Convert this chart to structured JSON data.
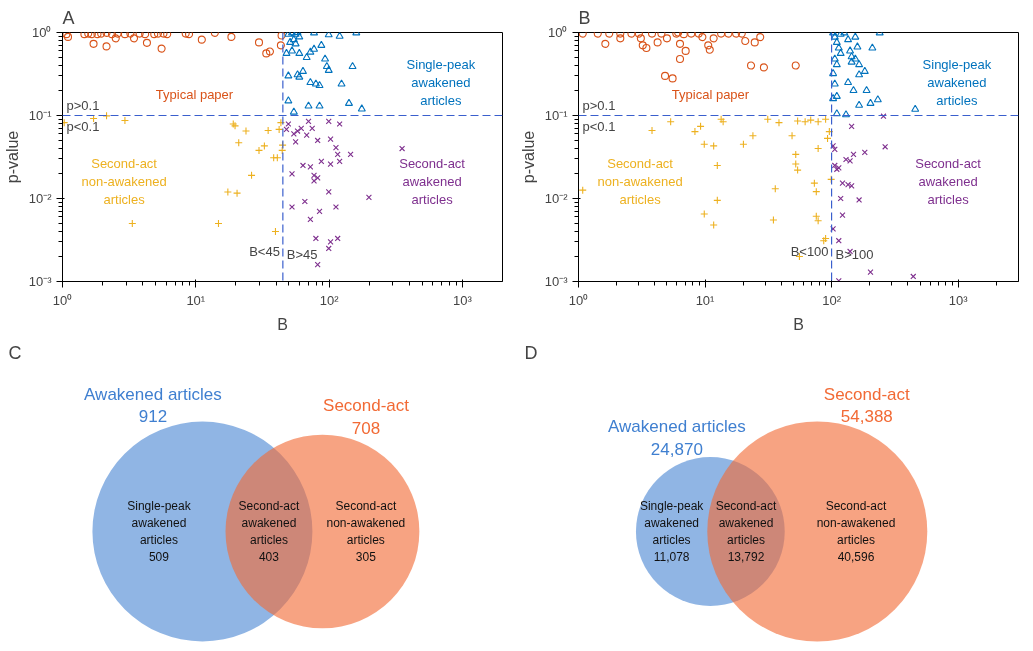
{
  "chart_data": [
    {
      "type": "scatter",
      "title": "A",
      "xlabel": "B",
      "ylabel": "p-value",
      "log": "xy",
      "xlim": [
        1,
        2000
      ],
      "ylim": [
        0.001,
        1
      ],
      "grid": false,
      "legend": "bottom left",
      "xticks": [
        {
          "value": 1,
          "label": "10⁰"
        },
        {
          "value": 10,
          "label": "10¹"
        },
        {
          "value": 100,
          "label": "10²"
        },
        {
          "value": 1000,
          "label": "10³"
        }
      ],
      "yticks": [
        {
          "value": 0.001,
          "label": "10⁻³"
        },
        {
          "value": 0.01,
          "label": "10⁻²"
        },
        {
          "value": 0.1,
          "label": "10⁻¹"
        },
        {
          "value": 1,
          "label": "10⁰"
        }
      ],
      "ref_lines": [
        {
          "axis": "y",
          "value": 0.1,
          "label": "p<0.1",
          "color": "#3a5fcd",
          "line_style": "dashed"
        },
        {
          "axis": "x",
          "value": 45,
          "label": "B<45",
          "color": "#3a5fcd",
          "line_style": "dashed"
        }
      ],
      "annotations": [
        {
          "text": "p>0.1",
          "x": 1,
          "y": 0.1
        },
        {
          "text": "B>45",
          "x": 45,
          "y": 0.0016
        }
      ],
      "series": [
        {
          "name": "Typical paper",
          "color": "#d95319",
          "marker": "circle",
          "x": [
            1.07,
            1.1,
            1.46,
            1.56,
            1.66,
            1.71,
            1.83,
            1.95,
            2.14,
            2.14,
            2.35,
            2.51,
            2.59,
            2.94,
            3.23,
            3.44,
            3.79,
            4.17,
            4.3,
            4.88,
            5.2,
            5.54,
            5.72,
            6.1,
            8.4,
            8.9,
            11.1,
            13.9,
            18.5,
            29.8,
            33.8,
            36,
            43.5,
            44
          ],
          "values": [
            0.955,
            0.885,
            0.955,
            0.97,
            0.955,
            0.73,
            0.955,
            0.97,
            0.99,
            0.68,
            0.955,
            0.85,
            0.97,
            0.955,
            0.97,
            0.85,
            0.97,
            0.955,
            0.75,
            0.955,
            0.97,
            0.64,
            0.97,
            0.955,
            0.97,
            0.955,
            0.82,
            0.99,
            0.885,
            0.76,
            0.56,
            0.59,
            0.7,
            0.92
          ]
        },
        {
          "name": "Single-peak awakened articles",
          "color": "#0072bd",
          "marker": "triangle",
          "x": [
            49.5,
            52.7,
            56.1,
            58,
            59.8,
            54.4,
            51,
            56.1,
            77.1,
            99.4,
            120,
            160,
            52.7,
            59.8,
            72.4,
            77.1,
            87.5,
            47.9,
            67.9,
            93.3,
            96.2,
            99.4,
            150,
            49.5,
            58,
            59.8,
            63.7,
            72.4,
            79.6,
            84.8,
            124,
            49.5,
            70.1,
            84.8,
            141,
            176,
            54.4
          ],
          "values": [
            0.955,
            0.99,
            0.955,
            1.0,
            0.885,
            0.82,
            0.76,
            0.73,
            0.99,
            0.94,
            0.9,
            0.99,
            0.6,
            0.56,
            0.58,
            0.63,
            0.7,
            0.56,
            0.5,
            0.48,
            0.39,
            0.35,
            0.39,
            0.3,
            0.31,
            0.29,
            0.34,
            0.25,
            0.24,
            0.23,
            0.24,
            0.15,
            0.13,
            0.13,
            0.14,
            0.12,
            0.11
          ]
        },
        {
          "name": "Second-act non-awakened articles",
          "color": "#edb120",
          "marker": "cross",
          "x": [
            1.03,
            1.71,
            2.14,
            2.94,
            19.1,
            19.7,
            23.8,
            34.9,
            42.2,
            43.5,
            21,
            32.7,
            29.8,
            44.8,
            44.5,
            38.4,
            40.9,
            26.2,
            17.4,
            20.4,
            3.34,
            14.8,
            39.6
          ],
          "values": [
            0.082,
            0.092,
            0.099,
            0.087,
            0.079,
            0.075,
            0.065,
            0.066,
            0.068,
            0.082,
            0.047,
            0.043,
            0.038,
            0.044,
            0.038,
            0.031,
            0.031,
            0.019,
            0.012,
            0.0116,
            0.005,
            0.005,
            0.004
          ]
        },
        {
          "name": "Second-act awakened articles",
          "color": "#7e2f8e",
          "marker": "x",
          "x": [
            47.9,
            49.5,
            54.4,
            58,
            61.8,
            67.9,
            70.1,
            74.7,
            82.1,
            99.4,
            102.6,
            120,
            112.6,
            116,
            120,
            145,
            56.1,
            63.7,
            72.4,
            87.5,
            102.6,
            353,
            52.7,
            77.1,
            82.1,
            77.1,
            99.4,
            65.8,
            199,
            52.7,
            112.6,
            84.8,
            72.4,
            79.6,
            102.6,
            116,
            99.4,
            82.1
          ],
          "values": [
            0.068,
            0.079,
            0.06,
            0.065,
            0.07,
            0.058,
            0.085,
            0.07,
            0.05,
            0.085,
            0.052,
            0.079,
            0.041,
            0.034,
            0.028,
            0.034,
            0.048,
            0.025,
            0.024,
            0.028,
            0.026,
            0.04,
            0.0198,
            0.019,
            0.0177,
            0.0163,
            0.012,
            0.0092,
            0.0103,
            0.0079,
            0.0079,
            0.007,
            0.0056,
            0.0033,
            0.003,
            0.0033,
            0.0025,
            0.0016
          ]
        }
      ]
    },
    {
      "type": "scatter",
      "title": "B",
      "xlabel": "B",
      "ylabel": "p-value",
      "log": "xy",
      "xlim": [
        1,
        3000
      ],
      "ylim": [
        0.001,
        1
      ],
      "grid": false,
      "legend": "bottom left",
      "xticks": [
        {
          "value": 1,
          "label": "10⁰"
        },
        {
          "value": 10,
          "label": "10¹"
        },
        {
          "value": 100,
          "label": "10²"
        },
        {
          "value": 1000,
          "label": "10³"
        }
      ],
      "yticks": [
        {
          "value": 0.001,
          "label": "10⁻³"
        },
        {
          "value": 0.01,
          "label": "10⁻²"
        },
        {
          "value": 0.1,
          "label": "10⁻¹"
        },
        {
          "value": 1,
          "label": "10⁰"
        }
      ],
      "ref_lines": [
        {
          "axis": "y",
          "value": 0.1,
          "label": "p<0.1",
          "color": "#3a5fcd",
          "line_style": "dashed"
        },
        {
          "axis": "x",
          "value": 100,
          "label": "B<100",
          "color": "#3a5fcd",
          "line_style": "dashed"
        }
      ],
      "annotations": [
        {
          "text": "p>0.1",
          "x": 1,
          "y": 0.1
        },
        {
          "text": "B>100",
          "x": 100,
          "y": 0.0016
        }
      ],
      "series": [
        {
          "name": "Typical paper",
          "color": "#d95319",
          "marker": "circle",
          "x": [
            1.08,
            1.42,
            1.63,
            1.75,
            2.14,
            2.14,
            2.62,
            3.0,
            3.11,
            3.22,
            3.44,
            3.81,
            4.22,
            4.52,
            5.0,
            5.93,
            6.13,
            6.34,
            6.79,
            7.03,
            6.34,
            7.78,
            8.91,
            9.53,
            10.6,
            10.9,
            11.7,
            13.4,
            15.3,
            17.6,
            19.5,
            20.8,
            24.7,
            27.3,
            4.83,
            5.54,
            23.1,
            29.2,
            52.1
          ],
          "values": [
            0.97,
            0.97,
            0.73,
            0.97,
            0.97,
            0.85,
            0.97,
            0.97,
            0.85,
            0.7,
            0.65,
            0.97,
            0.76,
            0.97,
            0.85,
            0.97,
            1.0,
            0.73,
            0.955,
            0.6,
            0.48,
            0.97,
            0.97,
            0.88,
            0.7,
            0.62,
            0.85,
            0.97,
            0.97,
            0.97,
            0.97,
            0.79,
            0.76,
            0.88,
            0.3,
            0.28,
            0.4,
            0.38,
            0.4
          ]
        },
        {
          "name": "Single-peak awakened articles",
          "color": "#0072bd",
          "marker": "triangle",
          "x": [
            102.8,
            106,
            110,
            114,
            118,
            106,
            110,
            102.8,
            106,
            110,
            102.8,
            118,
            126,
            135,
            140,
            144,
            154,
            160,
            144,
            154,
            165,
            183,
            165,
            135,
            149,
            189,
            165,
            203,
            232,
            240,
            210,
            110,
            130,
            458
          ],
          "values": [
            0.99,
            0.88,
            0.76,
            0.65,
            0.56,
            0.48,
            0.41,
            0.32,
            0.24,
            0.17,
            0.16,
            0.955,
            0.99,
            0.82,
            0.6,
            0.51,
            0.88,
            0.67,
            0.44,
            0.48,
            0.41,
            0.34,
            0.31,
            0.25,
            0.2,
            0.2,
            0.133,
            0.14,
            0.155,
            0.99,
            0.65,
            0.105,
            0.102,
            0.119
          ]
        },
        {
          "name": "Second-act non-awakened articles",
          "color": "#edb120",
          "marker": "cross",
          "x": [
            1.08,
            3.81,
            5.35,
            8.32,
            9.22,
            9.86,
            11.7,
            12.5,
            12.5,
            9.86,
            11.7,
            13.4,
            13.9,
            20.1,
            23.9,
            31.3,
            38.4,
            35.9,
            34.7,
            48.7,
            52.1,
            52.1,
            53.9,
            53.9,
            61.8,
            68.4,
            78.3,
            89.7,
            78.3,
            92.9,
            96,
            73.1,
            75.7,
            75.7,
            78.3,
            99.3,
            89.7,
            86.7,
            55.7
          ],
          "values": [
            0.0126,
            0.066,
            0.084,
            0.064,
            0.074,
            0.045,
            0.043,
            0.025,
            0.0095,
            0.0065,
            0.0048,
            0.09,
            0.084,
            0.045,
            0.057,
            0.09,
            0.082,
            0.0131,
            0.0055,
            0.057,
            0.034,
            0.026,
            0.022,
            0.086,
            0.084,
            0.088,
            0.084,
            0.09,
            0.04,
            0.053,
            0.064,
            0.0153,
            0.0121,
            0.0061,
            0.0054,
            0.017,
            0.0033,
            0.0031,
            0.002
          ]
        },
        {
          "name": "Second-act awakened articles",
          "color": "#7e2f8e",
          "marker": "x",
          "x": [
            102.8,
            106,
            106,
            110,
            114,
            130,
            140,
            149,
            183,
            265,
            144,
            257,
            122,
            135,
            144,
            118,
            165,
            122,
            102.8,
            114,
            140,
            203,
            442,
            114
          ],
          "values": [
            0.043,
            0.039,
            0.025,
            0.0225,
            0.0234,
            0.0295,
            0.0284,
            0.034,
            0.036,
            0.042,
            0.074,
            0.098,
            0.0153,
            0.0147,
            0.0142,
            0.01,
            0.0096,
            0.0063,
            0.0043,
            0.0031,
            0.0023,
            0.0013,
            0.00115,
            0.00102
          ]
        }
      ]
    },
    {
      "type": "other",
      "title": "C",
      "categories": [
        "Awakened articles",
        "Second-act"
      ],
      "values": [
        912,
        708
      ],
      "value_labels": [
        "912",
        "708"
      ],
      "colors": [
        "#3f7fd0",
        "#f26a35"
      ],
      "annotations": [
        "Single-peak awakened articles\n509",
        "Second-act awakened articles\n403",
        "Second-act non-awakened articles\n305"
      ]
    },
    {
      "type": "other",
      "title": "D",
      "categories": [
        "Awakened articles",
        "Second-act"
      ],
      "values": [
        24870,
        54388
      ],
      "value_labels": [
        "24,870",
        "54,388"
      ],
      "colors": [
        "#3f7fd0",
        "#f26a35"
      ],
      "annotations": [
        "Single-peak awakened articles\n11,078",
        "Second-act awakened articles\n13,792",
        "Second-act non-awakened articles\n40,596"
      ]
    }
  ]
}
